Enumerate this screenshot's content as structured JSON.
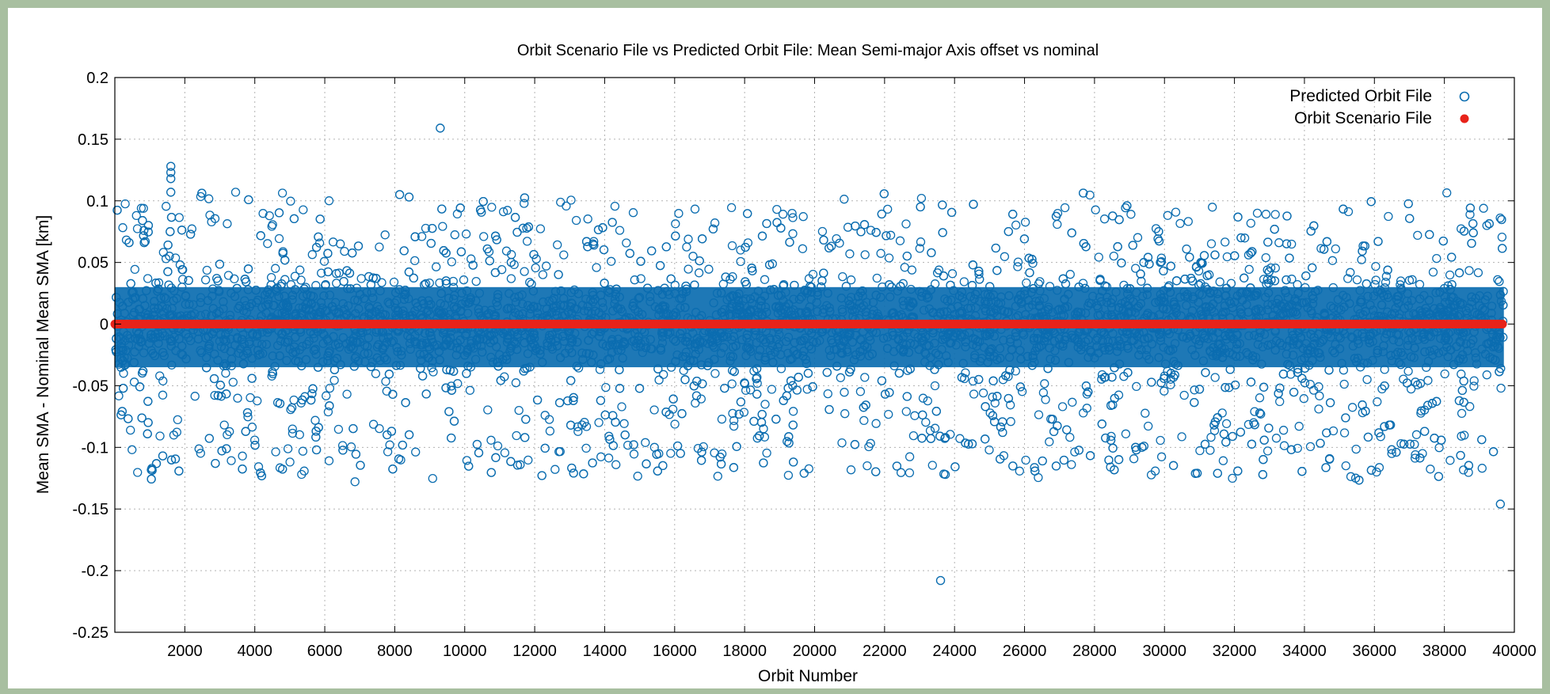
{
  "chart_data": {
    "type": "scatter",
    "title": "Orbit Scenario File vs Predicted Orbit File: Mean Semi-major Axis offset vs nominal",
    "xlabel": "Orbit Number",
    "ylabel": "Mean SMA - Nominal Mean SMA [km]",
    "xlim": [
      0,
      40000
    ],
    "ylim": [
      -0.25,
      0.2
    ],
    "xticks": [
      2000,
      4000,
      6000,
      8000,
      10000,
      12000,
      14000,
      16000,
      18000,
      20000,
      22000,
      24000,
      26000,
      28000,
      30000,
      32000,
      34000,
      36000,
      38000,
      40000
    ],
    "yticks": [
      -0.25,
      -0.2,
      -0.15,
      -0.1,
      -0.05,
      0,
      0.05,
      0.1,
      0.15,
      0.2
    ],
    "grid": true,
    "legend": "top-right",
    "series": [
      {
        "name": "Predicted Orbit File",
        "marker": "open-circle",
        "color": "#0b6db0",
        "x_range": [
          0,
          39700
        ],
        "typical_envelope": [
          -0.13,
          0.11
        ],
        "outliers": [
          {
            "x": 1600,
            "y": 0.128
          },
          {
            "x": 1600,
            "y": 0.123
          },
          {
            "x": 1600,
            "y": 0.118
          },
          {
            "x": 1600,
            "y": 0.107
          },
          {
            "x": 9300,
            "y": 0.159
          },
          {
            "x": 19700,
            "y": -0.121
          },
          {
            "x": 23600,
            "y": -0.208
          },
          {
            "x": 39600,
            "y": -0.146
          }
        ]
      },
      {
        "name": "Orbit Scenario File",
        "marker": "filled-circle",
        "color": "#e8231a",
        "x_range": [
          0,
          39700
        ],
        "y": 0
      }
    ]
  }
}
